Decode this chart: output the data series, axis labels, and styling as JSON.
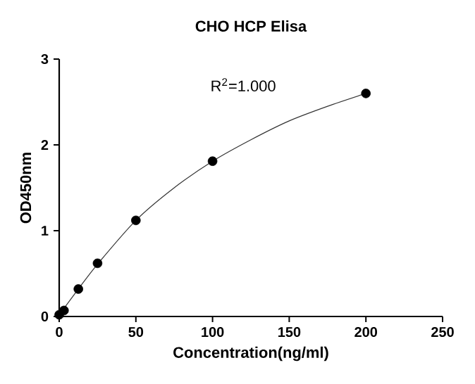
{
  "chart_data": {
    "type": "scatter",
    "title": "CHO HCP Elisa",
    "xlabel": "Concentration(ng/ml)",
    "ylabel": "OD450nm",
    "annotations": [
      "R$^{2}$=1.000"
    ],
    "series": [
      {
        "color": "#000000",
        "marker": "circle",
        "x": [
          0,
          3.125,
          12.5,
          25,
          50,
          100,
          200
        ],
        "values": [
          0.02,
          0.07,
          0.32,
          0.62,
          1.12,
          1.81,
          2.6
        ]
      },
      {
        "type": "line",
        "color": "#333333",
        "marker": "none",
        "line_style": "solid",
        "x": [
          0,
          12.5,
          25,
          50,
          75,
          100,
          125,
          150,
          175,
          200
        ],
        "values": [
          0.02,
          0.32,
          0.61,
          1.12,
          1.5,
          1.81,
          2.06,
          2.28,
          2.45,
          2.6
        ]
      }
    ],
    "xlim": [
      0,
      250
    ],
    "xticks": [
      0,
      50,
      100,
      150,
      200,
      250
    ],
    "ylim": [
      0,
      3
    ],
    "yticks": [
      0,
      1,
      2,
      3
    ],
    "grid": false
  }
}
